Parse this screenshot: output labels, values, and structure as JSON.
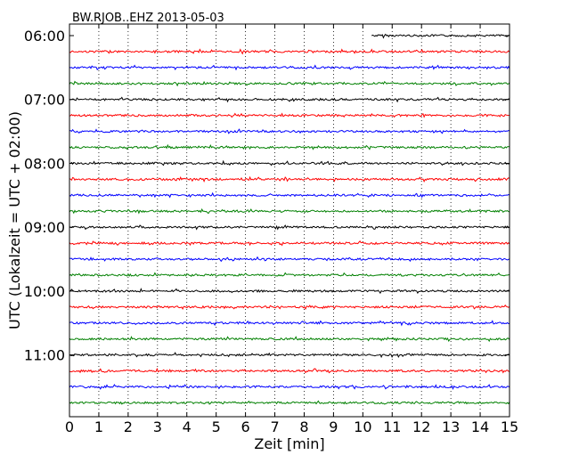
{
  "chart_data": {
    "type": "line",
    "title": "BW.RJOB..EHZ 2013-05-03",
    "xlabel": "Zeit  [min]",
    "ylabel": "UTC (Lokalzeit = UTC + 02:00)",
    "xlim": [
      0,
      15
    ],
    "x_ticks": [
      "0",
      "1",
      "2",
      "3",
      "4",
      "5",
      "6",
      "7",
      "8",
      "9",
      "10",
      "11",
      "12",
      "13",
      "14",
      "15"
    ],
    "y_tick_labels": [
      {
        "label": "06:00",
        "row": 0
      },
      {
        "label": "07:00",
        "row": 4
      },
      {
        "label": "08:00",
        "row": 8
      },
      {
        "label": "09:00",
        "row": 12
      },
      {
        "label": "10:00",
        "row": 16
      },
      {
        "label": "11:00",
        "row": 20
      }
    ],
    "row_interval_minutes": 15,
    "row_count": 24,
    "color_cycle": [
      "#000000",
      "#ff0000",
      "#0000ff",
      "#008000"
    ],
    "first_row_start_min": 10.3,
    "grid_x": true,
    "grid_style": "dotted"
  }
}
